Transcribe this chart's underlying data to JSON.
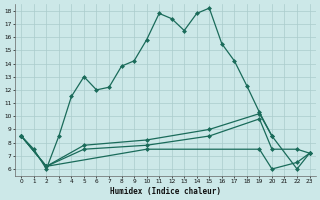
{
  "xlabel": "Humidex (Indice chaleur)",
  "bg_color": "#cce8e8",
  "grid_color": "#aacccc",
  "line_color": "#1a6b5a",
  "xlim": [
    -0.5,
    23.5
  ],
  "ylim": [
    5.5,
    18.5
  ],
  "yticks": [
    6,
    7,
    8,
    9,
    10,
    11,
    12,
    13,
    14,
    15,
    16,
    17,
    18
  ],
  "xticks": [
    0,
    1,
    2,
    3,
    4,
    5,
    6,
    7,
    8,
    9,
    10,
    11,
    12,
    13,
    14,
    15,
    16,
    17,
    18,
    19,
    20,
    21,
    22,
    23
  ],
  "line1_x": [
    0,
    1,
    2,
    3,
    4,
    5,
    6,
    7,
    8,
    9,
    10,
    11,
    12,
    13,
    14,
    15,
    16,
    17,
    18,
    19,
    20
  ],
  "line1_y": [
    8.5,
    7.5,
    6.0,
    8.5,
    11.5,
    13.0,
    12.0,
    12.2,
    13.8,
    14.2,
    15.8,
    17.8,
    17.4,
    16.5,
    17.8,
    18.2,
    15.5,
    14.2,
    12.3,
    10.3,
    8.5
  ],
  "line2_x": [
    0,
    2,
    5,
    10,
    15,
    19,
    20,
    22,
    23
  ],
  "line2_y": [
    8.5,
    6.2,
    7.8,
    8.2,
    9.0,
    10.2,
    8.5,
    6.0,
    7.2
  ],
  "line3_x": [
    0,
    2,
    5,
    10,
    15,
    19,
    20,
    22,
    23
  ],
  "line3_y": [
    8.5,
    6.2,
    7.5,
    7.8,
    8.5,
    9.8,
    7.5,
    7.5,
    7.2
  ],
  "line4_x": [
    0,
    2,
    10,
    19,
    20,
    22,
    23
  ],
  "line4_y": [
    8.5,
    6.2,
    7.5,
    7.5,
    6.0,
    6.5,
    7.2
  ]
}
